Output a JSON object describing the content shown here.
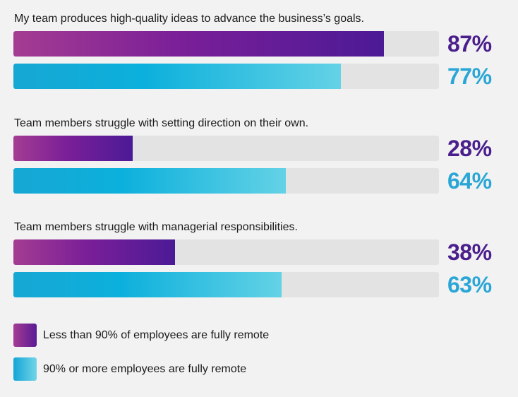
{
  "chart_data": {
    "type": "bar",
    "orientation": "horizontal",
    "categories": [
      "My team produces high-quality ideas to advance the business’s goals.",
      "Team members struggle with setting direction on their own.",
      "Team members struggle with managerial responsibilities."
    ],
    "series": [
      {
        "name": "Less than 90% of employees are fully remote",
        "values": [
          87,
          28,
          38
        ],
        "labels": [
          "87%",
          "28%",
          "38%"
        ],
        "color": "#4a1f8c"
      },
      {
        "name": "90% or more employees are fully remote",
        "values": [
          77,
          64,
          63
        ],
        "labels": [
          "77%",
          "64%",
          "63%"
        ],
        "color": "#2aa6d6"
      }
    ],
    "xlim": [
      0,
      100
    ],
    "legend_position": "bottom-left",
    "grid": false
  }
}
